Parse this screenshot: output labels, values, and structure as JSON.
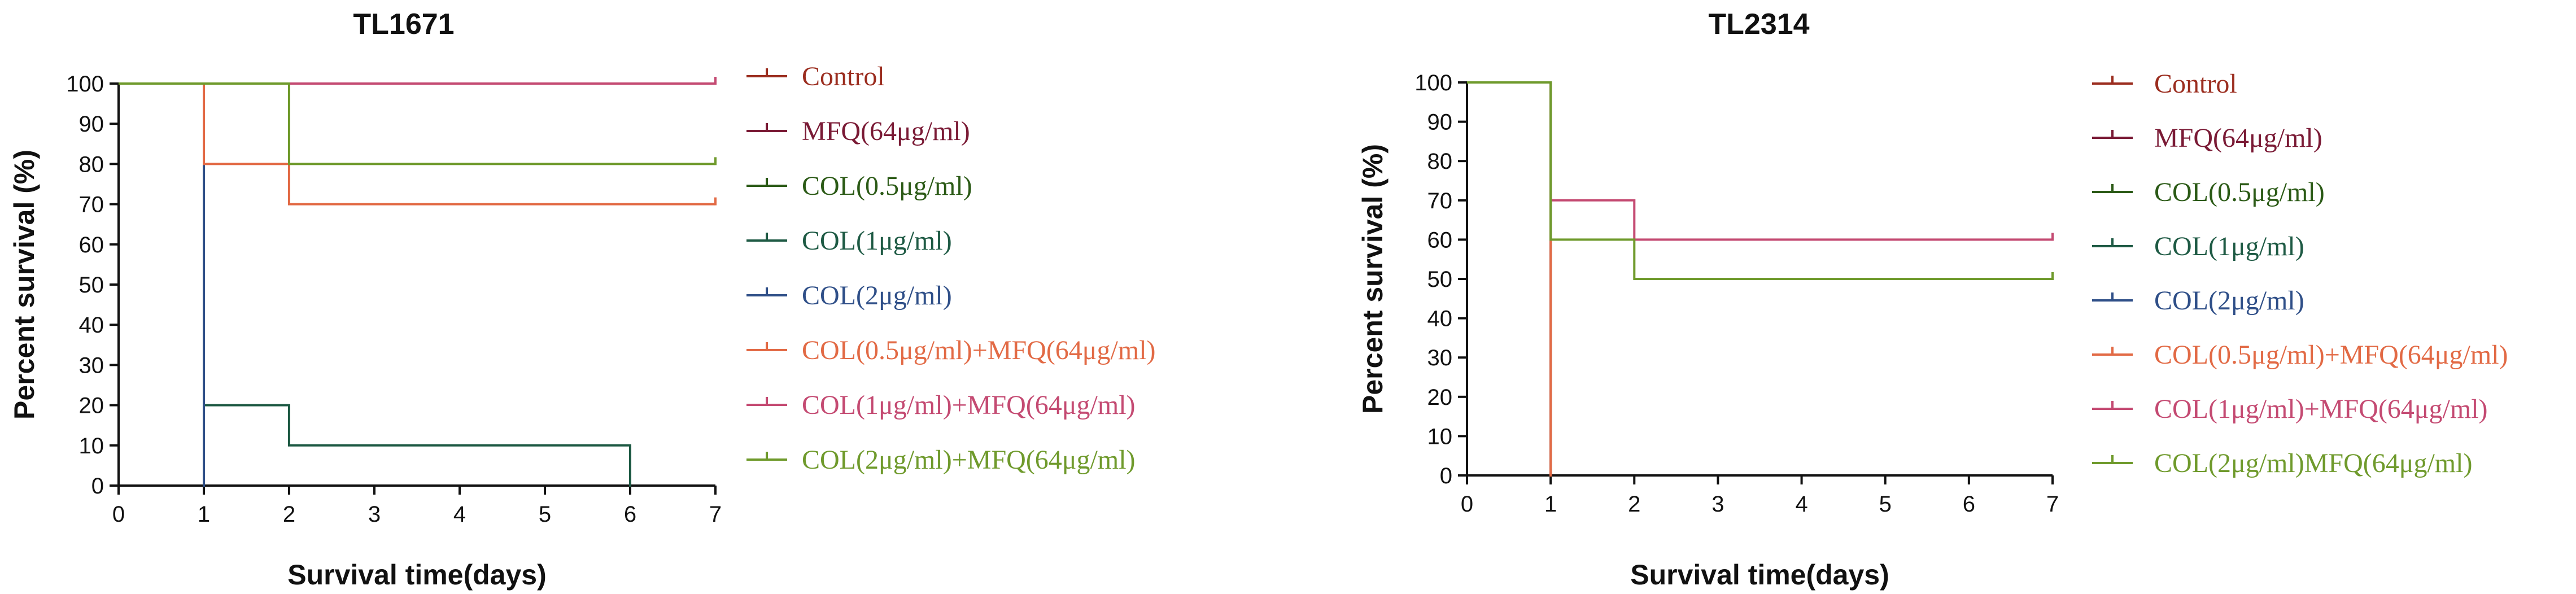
{
  "chart_data": [
    {
      "type": "line",
      "step": true,
      "title": "TL1671",
      "xlabel": "Survival time(days)",
      "ylabel": "Percent survival (%)",
      "xlim": [
        0,
        7
      ],
      "ylim": [
        0,
        100
      ],
      "xticks": [
        0,
        1,
        2,
        3,
        4,
        5,
        6,
        7
      ],
      "yticks": [
        0,
        10,
        20,
        30,
        40,
        50,
        60,
        70,
        80,
        90,
        100
      ],
      "grid": false,
      "legend_position": "right",
      "series": [
        {
          "name": "Control",
          "color": "#9b2d1f",
          "x": [
            0,
            1,
            1
          ],
          "y": [
            100,
            100,
            0
          ]
        },
        {
          "name": "MFQ(64μg/ml)",
          "color": "#7a1a35",
          "x": [
            0,
            1,
            1
          ],
          "y": [
            100,
            100,
            0
          ]
        },
        {
          "name": "COL(0.5μg/ml)",
          "color": "#2b5a16",
          "x": [
            0,
            1,
            1
          ],
          "y": [
            100,
            100,
            0
          ]
        },
        {
          "name": "COL(1μg/ml)",
          "color": "#1e5a44",
          "x": [
            0,
            1,
            1,
            2,
            2,
            6,
            6
          ],
          "y": [
            100,
            100,
            20,
            20,
            10,
            10,
            0
          ]
        },
        {
          "name": "COL(2μg/ml)",
          "color": "#2f4f88",
          "x": [
            0,
            1,
            1
          ],
          "y": [
            100,
            100,
            0
          ]
        },
        {
          "name": "COL(0.5μg/ml)+MFQ(64μg/ml)",
          "color": "#e26a45",
          "x": [
            0,
            1,
            1,
            2,
            2,
            7
          ],
          "y": [
            100,
            100,
            80,
            80,
            70,
            70
          ]
        },
        {
          "name": "COL(1μg/ml)+MFQ(64μg/ml)",
          "color": "#c44a72",
          "x": [
            0,
            7
          ],
          "y": [
            100,
            100
          ]
        },
        {
          "name": "COL(2μg/ml)+MFQ(64μg/ml)",
          "color": "#6f9a2c",
          "x": [
            0,
            2,
            2,
            7
          ],
          "y": [
            100,
            100,
            80,
            80
          ]
        }
      ]
    },
    {
      "type": "line",
      "step": true,
      "title": "TL2314",
      "xlabel": "Survival time(days)",
      "ylabel": "Percent survival (%)",
      "xlim": [
        0,
        7
      ],
      "ylim": [
        0,
        100
      ],
      "xticks": [
        0,
        1,
        2,
        3,
        4,
        5,
        6,
        7
      ],
      "yticks": [
        0,
        10,
        20,
        30,
        40,
        50,
        60,
        70,
        80,
        90,
        100
      ],
      "grid": false,
      "legend_position": "right",
      "series": [
        {
          "name": "Control",
          "color": "#9b2d1f",
          "x": [
            0,
            1,
            1
          ],
          "y": [
            100,
            100,
            0
          ]
        },
        {
          "name": "MFQ(64μg/ml)",
          "color": "#7a1a35",
          "x": [
            0,
            1,
            1
          ],
          "y": [
            100,
            100,
            0
          ]
        },
        {
          "name": "COL(0.5μg/ml)",
          "color": "#2b5a16",
          "x": [
            0,
            1,
            1
          ],
          "y": [
            100,
            100,
            0
          ]
        },
        {
          "name": "COL(1μg/ml)",
          "color": "#1e5a44",
          "x": [
            0,
            1,
            1
          ],
          "y": [
            100,
            100,
            0
          ]
        },
        {
          "name": "COL(2μg/ml)",
          "color": "#2f4f88",
          "x": [
            0,
            1,
            1
          ],
          "y": [
            100,
            100,
            0
          ]
        },
        {
          "name": "COL(0.5μg/ml)+MFQ(64μg/ml)",
          "color": "#e26a45",
          "x": [
            0,
            1,
            1
          ],
          "y": [
            100,
            100,
            0
          ]
        },
        {
          "name": "COL(1μg/ml)+MFQ(64μg/ml)",
          "color": "#c44a72",
          "x": [
            0,
            1,
            1,
            2,
            2,
            7
          ],
          "y": [
            100,
            100,
            70,
            70,
            60,
            60
          ]
        },
        {
          "name": "COL(2μg/ml)MFQ(64μg/ml)",
          "color": "#6f9a2c",
          "x": [
            0,
            1,
            1,
            2,
            2,
            7
          ],
          "y": [
            100,
            100,
            60,
            60,
            50,
            50
          ]
        }
      ]
    }
  ]
}
